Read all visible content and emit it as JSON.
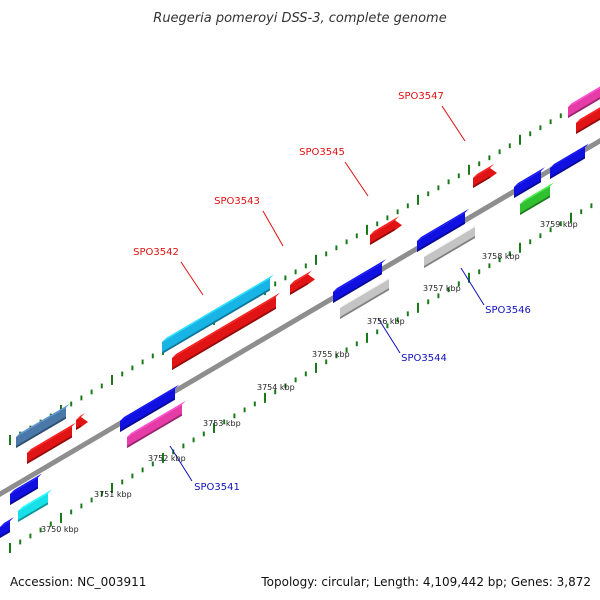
{
  "title": "Ruegeria pomeroyi DSS-3, complete genome",
  "footer": {
    "accession": "Accession: NC_003911",
    "summary": "Topology: circular; Length: 4,109,442 bp; Genes: 3,872"
  },
  "colors": {
    "backbone": "#8e8e8e",
    "tick": "#1a7a1a",
    "forward_label": "#dd1111",
    "reverse_label": "#1111bb"
  },
  "ruler": [
    "3750 kbp",
    "3751 kbp",
    "3752 kbp",
    "3753 kbp",
    "3754 kbp",
    "3755 kbp",
    "3756 kbp",
    "3757 kbp",
    "3758 kbp",
    "3759 kbp"
  ],
  "labels": {
    "forward": [
      "SPO3542",
      "SPO3543",
      "SPO3545",
      "SPO3547"
    ],
    "reverse": [
      "SPO3541",
      "SPO3544",
      "SPO3546"
    ]
  }
}
